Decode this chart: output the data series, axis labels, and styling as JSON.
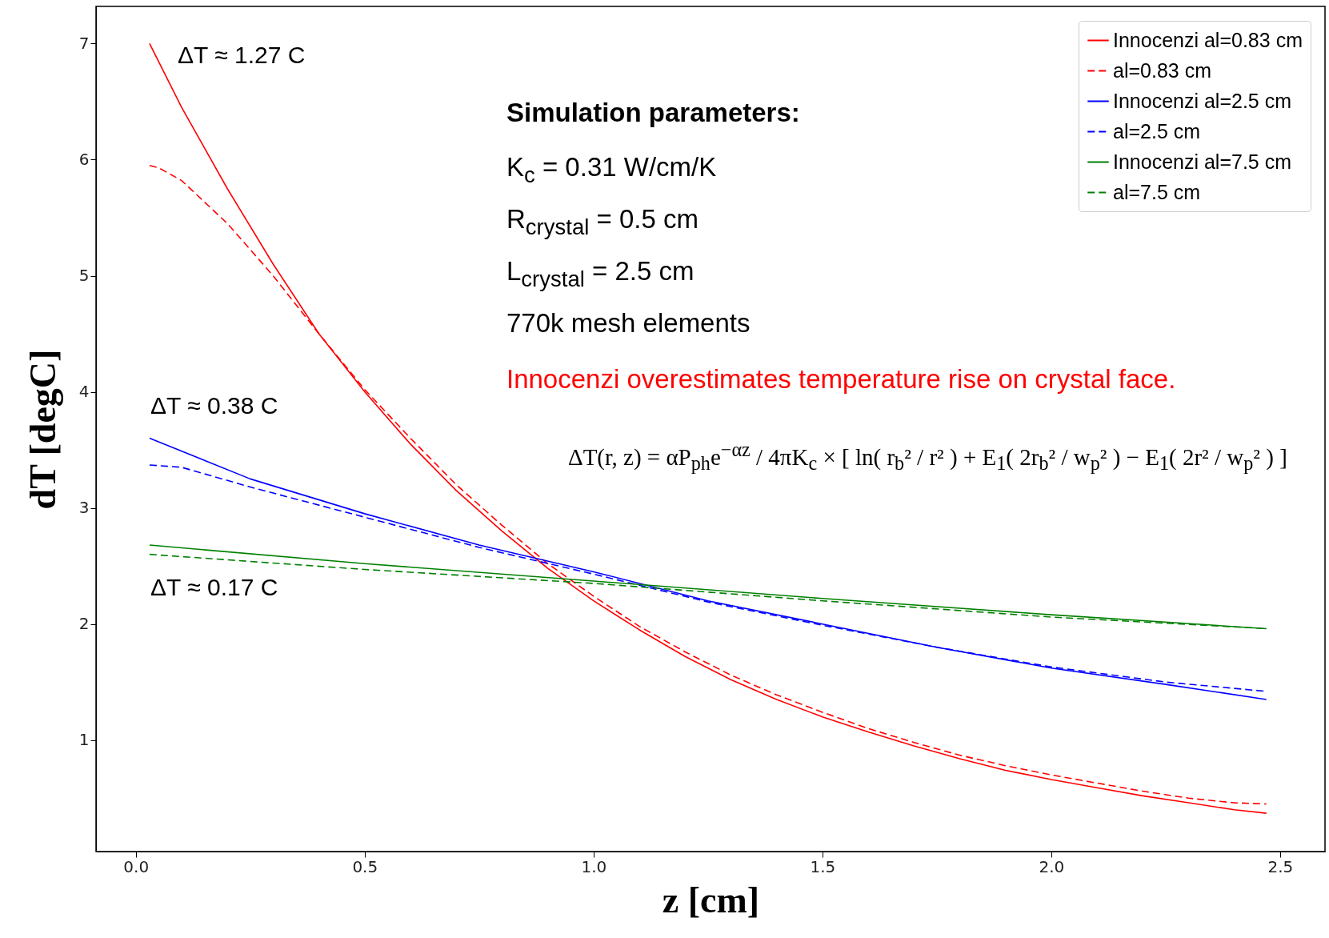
{
  "chart_data": {
    "type": "line",
    "xlabel": "z [cm]",
    "ylabel": "dT [degC]",
    "xlim": [
      -0.087,
      2.598
    ],
    "ylim": [
      0.04,
      7.32
    ],
    "xticks": [
      {
        "value": 0,
        "label": "0.0"
      },
      0.5,
      {
        "value": 1,
        "label": "1.0"
      },
      1.5,
      {
        "value": 2,
        "label": "2.0"
      },
      2.5
    ],
    "yticks": [
      1,
      2,
      3,
      4,
      5,
      6,
      7
    ],
    "grid": false,
    "legend": "top right",
    "marker": "none",
    "series": [
      {
        "name": "Innocenzi al=0.83 cm",
        "color": "#ff0000",
        "line_style": "solid",
        "x": [
          0.03,
          0.1,
          0.2,
          0.3,
          0.4,
          0.5,
          0.6,
          0.7,
          0.8,
          0.9,
          1.0,
          1.1,
          1.2,
          1.3,
          1.4,
          1.5,
          1.6,
          1.7,
          1.8,
          1.9,
          2.0,
          2.1,
          2.2,
          2.3,
          2.4,
          2.47
        ],
        "values": [
          7.0,
          6.45,
          5.75,
          5.1,
          4.5,
          4.0,
          3.55,
          3.15,
          2.8,
          2.48,
          2.2,
          1.95,
          1.72,
          1.52,
          1.35,
          1.2,
          1.07,
          0.95,
          0.84,
          0.74,
          0.66,
          0.59,
          0.52,
          0.46,
          0.4,
          0.37
        ]
      },
      {
        "name": "al=0.83 cm",
        "color": "#ff0000",
        "line_style": "dashed",
        "x": [
          0.03,
          0.05,
          0.1,
          0.2,
          0.3,
          0.4,
          0.5,
          0.6,
          0.7,
          0.8,
          0.9,
          1.0,
          1.1,
          1.2,
          1.3,
          1.4,
          1.5,
          1.6,
          1.7,
          1.8,
          1.9,
          2.0,
          2.1,
          2.2,
          2.3,
          2.4,
          2.47
        ],
        "values": [
          5.95,
          5.93,
          5.82,
          5.45,
          5.0,
          4.5,
          4.02,
          3.6,
          3.2,
          2.85,
          2.52,
          2.24,
          1.98,
          1.76,
          1.56,
          1.39,
          1.24,
          1.1,
          0.98,
          0.87,
          0.78,
          0.7,
          0.63,
          0.56,
          0.5,
          0.46,
          0.45
        ]
      },
      {
        "name": "Innocenzi al=2.5 cm",
        "color": "#0000ff",
        "line_style": "solid",
        "x": [
          0.03,
          0.25,
          0.5,
          0.75,
          1.0,
          1.25,
          1.5,
          1.75,
          2.0,
          2.25,
          2.47
        ],
        "values": [
          3.6,
          3.25,
          2.95,
          2.68,
          2.45,
          2.2,
          2.0,
          1.8,
          1.62,
          1.48,
          1.35
        ]
      },
      {
        "name": "al=2.5 cm",
        "color": "#0000ff",
        "line_style": "dashed",
        "x": [
          0.03,
          0.1,
          0.25,
          0.5,
          0.75,
          1.0,
          1.25,
          1.5,
          1.75,
          2.0,
          2.25,
          2.47
        ],
        "values": [
          3.37,
          3.35,
          3.18,
          2.92,
          2.66,
          2.43,
          2.19,
          1.99,
          1.8,
          1.63,
          1.5,
          1.42
        ]
      },
      {
        "name": "Innocenzi al=7.5 cm",
        "color": "#008000",
        "line_style": "solid",
        "x": [
          0.03,
          0.5,
          1.0,
          1.5,
          2.0,
          2.47
        ],
        "values": [
          2.68,
          2.52,
          2.37,
          2.22,
          2.08,
          1.96
        ]
      },
      {
        "name": "al=7.5 cm",
        "color": "#008000",
        "line_style": "dashed",
        "x": [
          0.03,
          0.5,
          1.0,
          1.5,
          2.0,
          2.47
        ],
        "values": [
          2.6,
          2.47,
          2.35,
          2.2,
          2.06,
          1.96
        ]
      }
    ],
    "annotations": [
      "ΔT ≈ 1.27 C",
      "ΔT ≈ 0.38 C",
      "ΔT ≈ 0.17 C",
      "Simulation parameters:",
      "K$_{c}$ = 0.31 W/cm/K",
      "R$_{crystal}$ = 0.5 cm",
      "L$_{crystal}$ = 2.5 cm",
      "770k mesh elements",
      "Innocenzi overestimates temperature rise on crystal face.",
      "ΔT(r, z) = αP$_{ph}$e$^{−αz}$ / 4πK$_{c}$ × [ ln( r$_{b}$² / r² ) + E$_{1}$( 2r$_{b}$² / w$_{p}$² ) − E$_{1}$( 2r² / w$_{p}$² ) ]"
    ]
  }
}
